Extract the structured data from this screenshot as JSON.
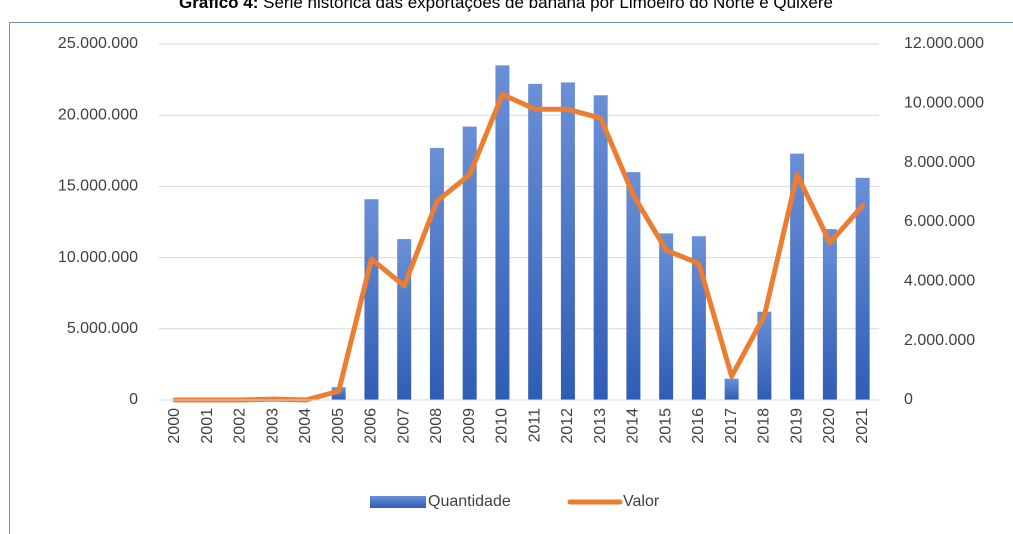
{
  "chart_data": {
    "type": "bar_line",
    "title_label": "Gráfico 4:",
    "title": "Série histórica das exportações de banana por Limoeiro do Norte e Quixeré",
    "categories": [
      "2000",
      "2001",
      "2002",
      "2003",
      "2004",
      "2005",
      "2006",
      "2007",
      "2008",
      "2009",
      "2010",
      "2011",
      "2012",
      "2013",
      "2014",
      "2015",
      "2016",
      "2017",
      "2018",
      "2019",
      "2020",
      "2021"
    ],
    "series": [
      {
        "name": "Quantidade",
        "color": "#4472c4",
        "values": [
          0,
          0,
          0,
          0,
          0,
          900000,
          14100000,
          11300000,
          17700000,
          19200000,
          23500000,
          22200000,
          22300000,
          21400000,
          16000000,
          11700000,
          11500000,
          1500000,
          6200000,
          17300000,
          12000000,
          15600000
        ]
      },
      {
        "name": "Valor",
        "color": "#ed7d31",
        "axis": "y2",
        "values": [
          0,
          0,
          0,
          30000,
          0,
          300000,
          4750000,
          3850000,
          6700000,
          7600000,
          10300000,
          9800000,
          9800000,
          9500000,
          6900000,
          5050000,
          4600000,
          800000,
          2850000,
          7600000,
          5300000,
          6550000
        ]
      }
    ],
    "ylim": [
      0,
      25000000
    ],
    "yticks": [
      0,
      {
        "value": 5000000,
        "label": "5.000.000"
      },
      {
        "value": 10000000,
        "label": "10.000.000"
      },
      {
        "value": 15000000,
        "label": "15.000.000"
      },
      {
        "value": 20000000,
        "label": "20.000.000"
      },
      {
        "value": 25000000,
        "label": "25.000.000"
      }
    ],
    "y2lim": [
      0,
      12000000
    ],
    "y2ticks": [
      0,
      {
        "value": 2000000,
        "label": "2.000.000"
      },
      {
        "value": 4000000,
        "label": "4.000.000"
      },
      {
        "value": 6000000,
        "label": "6.000.000"
      },
      {
        "value": 8000000,
        "label": "8.000.000"
      },
      {
        "value": 10000000,
        "label": "10.000.000"
      },
      {
        "value": 12000000,
        "label": "12.000.000"
      }
    ],
    "grid": true,
    "legend": "bottom"
  }
}
